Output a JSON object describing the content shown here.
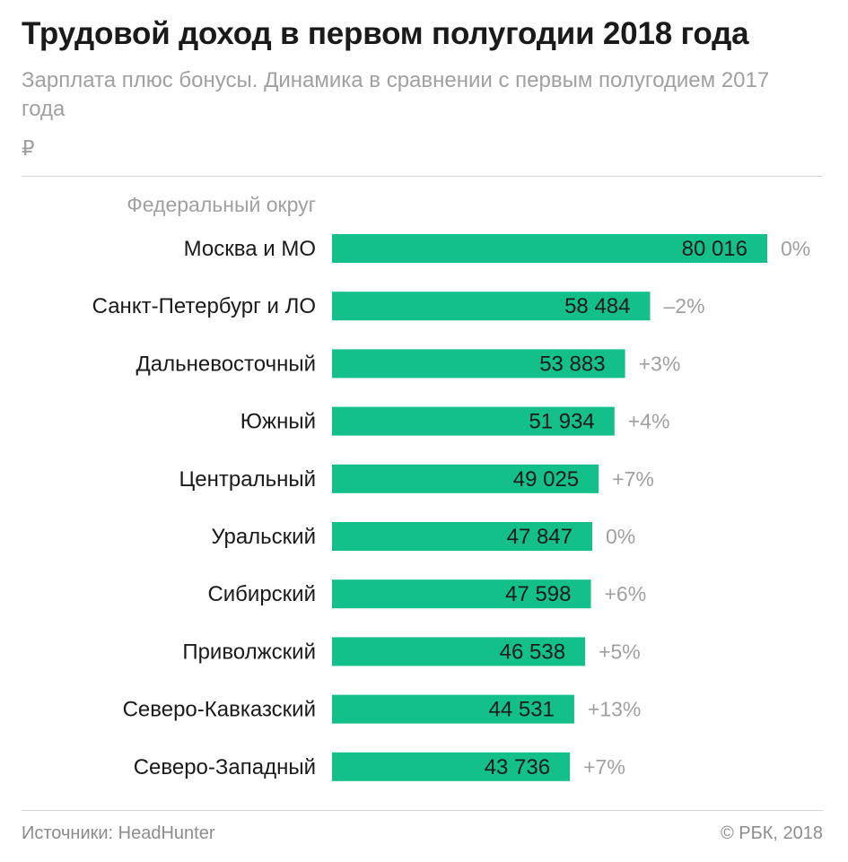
{
  "header": {
    "title": "Трудовой доход в первом полугодии 2018 года",
    "subtitle": "Зарплата плюс бонусы. Динамика в сравнении с первым полугодием 2017 года",
    "unit": "₽"
  },
  "footer": {
    "source": "Источники: HeadHunter",
    "copyright": "© РБК, 2018"
  },
  "colors": {
    "bar": "#13bf8b"
  },
  "chart_data": {
    "type": "bar",
    "orientation": "horizontal",
    "category_axis_label": "Федеральный округ",
    "categories": [
      "Москва и МО",
      "Санкт-Петербург и ЛО",
      "Дальневосточный",
      "Южный",
      "Центральный",
      "Уральский",
      "Сибирский",
      "Приволжский",
      "Северо-Кавказский",
      "Северо-Западный"
    ],
    "values": [
      80016,
      58484,
      53883,
      51934,
      49025,
      47847,
      47598,
      46538,
      44531,
      43736
    ],
    "value_labels": [
      "80 016",
      "58 484",
      "53 883",
      "51 934",
      "49 025",
      "47 847",
      "47 598",
      "46 538",
      "44 531",
      "43 736"
    ],
    "change_labels": [
      "0%",
      "–2%",
      "+3%",
      "+4%",
      "+7%",
      "0%",
      "+6%",
      "+5%",
      "+13%",
      "+7%"
    ],
    "xlim": [
      0,
      80016
    ],
    "grid": false
  }
}
